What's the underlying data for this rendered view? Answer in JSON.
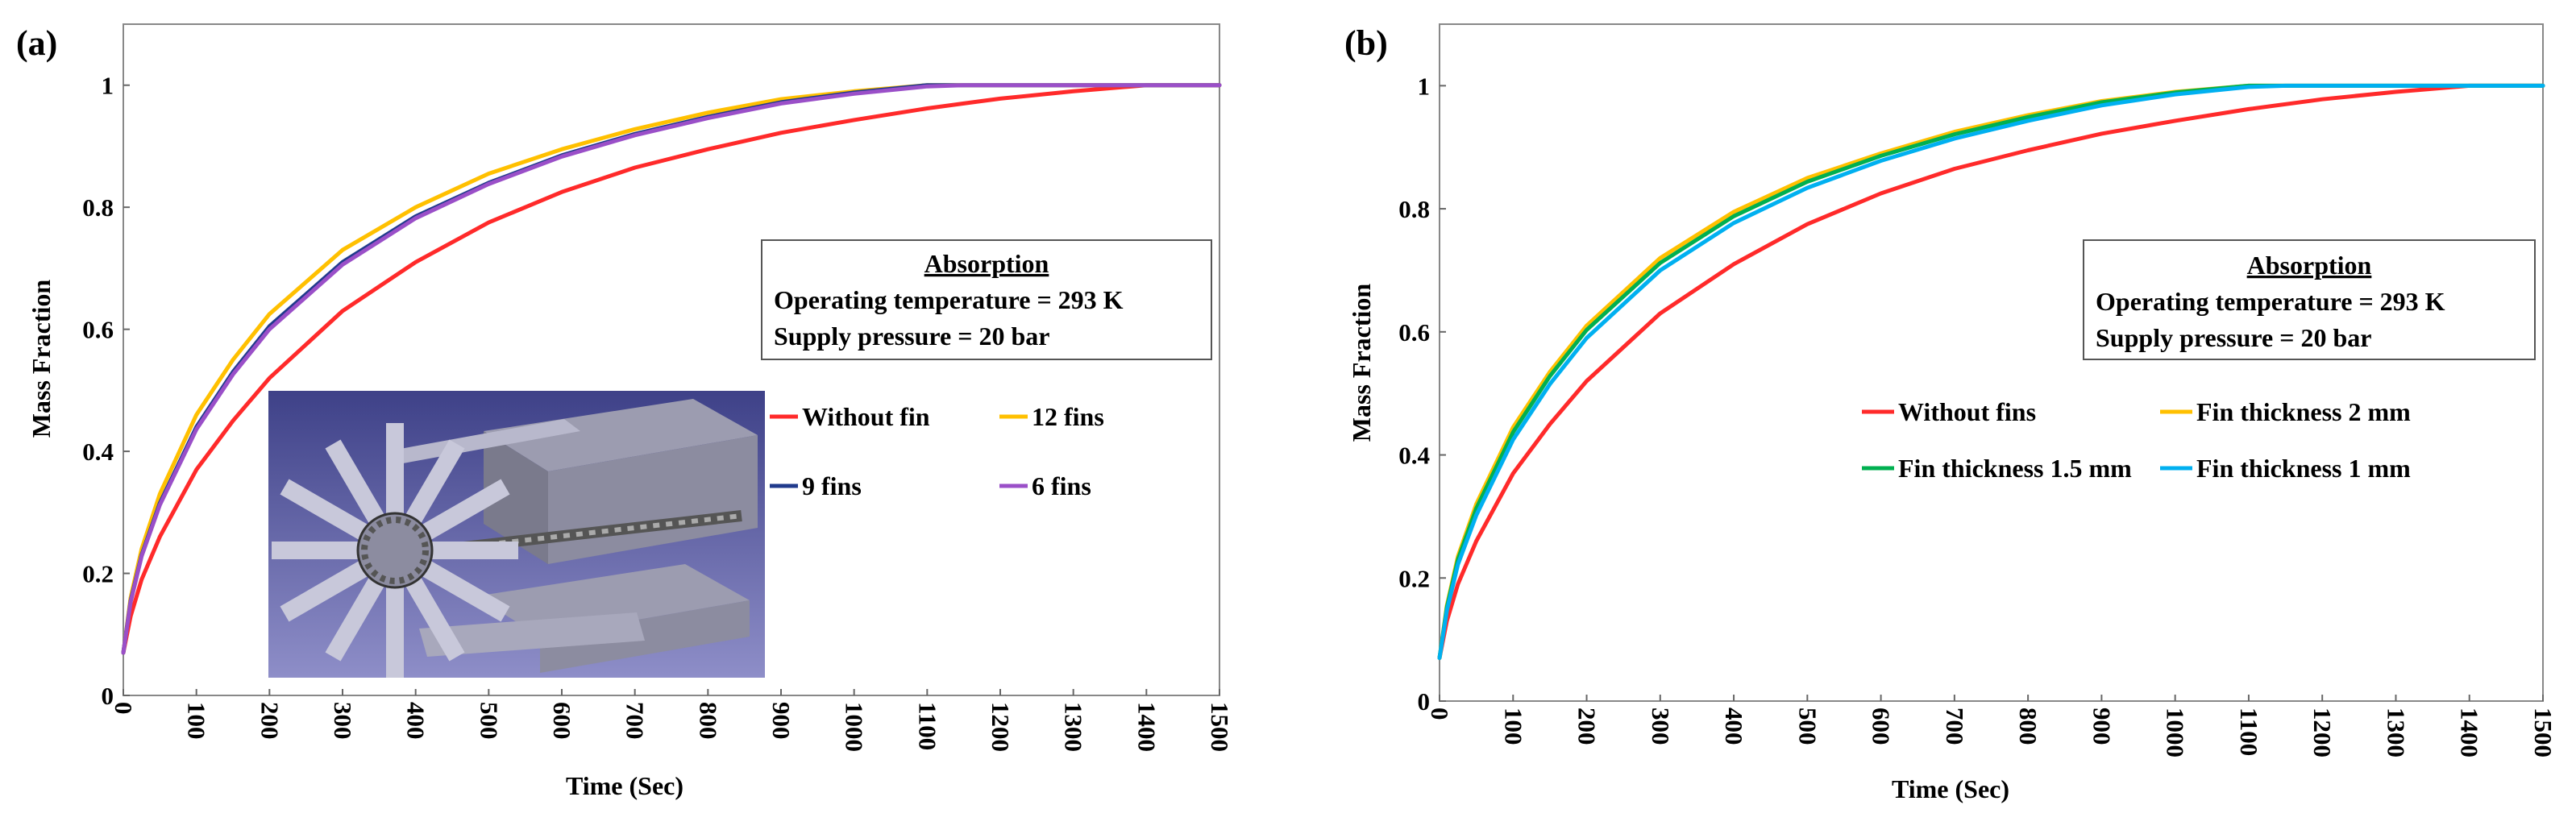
{
  "chart_data": [
    {
      "type": "line",
      "panel_label": "(a)",
      "xlabel": "Time (Sec)",
      "ylabel": "Mass Fraction",
      "xlim": [
        0,
        1500
      ],
      "ylim": [
        0,
        1.1
      ],
      "xticks": [
        0,
        100,
        200,
        300,
        400,
        500,
        600,
        700,
        800,
        900,
        1000,
        1100,
        1200,
        1300,
        1400,
        1500
      ],
      "yticks": [
        0,
        0.2,
        0.4,
        0.6,
        0.8,
        1
      ],
      "grid": false,
      "info_box": {
        "title": "Absorption",
        "line1": "Operating temperature = 293 K",
        "line2": "Supply pressure = 20 bar"
      },
      "inset": "fin geometry rendering",
      "x": [
        0,
        10,
        25,
        50,
        100,
        150,
        200,
        300,
        400,
        500,
        600,
        700,
        800,
        900,
        1000,
        1100,
        1150,
        1200,
        1300,
        1400,
        1500
      ],
      "series": [
        {
          "name": "Without fin",
          "color": "#ff2a2a",
          "values": [
            0.07,
            0.13,
            0.19,
            0.26,
            0.37,
            0.45,
            0.52,
            0.63,
            0.71,
            0.775,
            0.825,
            0.865,
            0.895,
            0.922,
            0.943,
            0.962,
            0.97,
            0.978,
            0.99,
            1.0,
            1.0
          ]
        },
        {
          "name": "12 fins",
          "color": "#ffc000",
          "values": [
            0.07,
            0.16,
            0.24,
            0.33,
            0.46,
            0.55,
            0.625,
            0.73,
            0.8,
            0.855,
            0.895,
            0.928,
            0.955,
            0.977,
            0.99,
            1.0,
            1.0,
            1.0,
            1.0,
            1.0,
            1.0
          ]
        },
        {
          "name": "9 fins",
          "color": "#203a8c",
          "values": [
            0.07,
            0.155,
            0.23,
            0.315,
            0.44,
            0.53,
            0.605,
            0.71,
            0.785,
            0.84,
            0.885,
            0.92,
            0.948,
            0.972,
            0.988,
            1.0,
            1.0,
            1.0,
            1.0,
            1.0,
            1.0
          ]
        },
        {
          "name": "6 fins",
          "color": "#9a4fc8",
          "values": [
            0.07,
            0.153,
            0.228,
            0.312,
            0.436,
            0.526,
            0.6,
            0.706,
            0.782,
            0.838,
            0.883,
            0.918,
            0.946,
            0.97,
            0.986,
            0.998,
            1.0,
            1.0,
            1.0,
            1.0,
            1.0
          ]
        }
      ]
    },
    {
      "type": "line",
      "panel_label": "(b)",
      "xlabel": "Time (Sec)",
      "ylabel": "Mass Fraction",
      "xlim": [
        0,
        1500
      ],
      "ylim": [
        0,
        1.1
      ],
      "xticks": [
        0,
        100,
        200,
        300,
        400,
        500,
        600,
        700,
        800,
        900,
        1000,
        1100,
        1200,
        1300,
        1400,
        1500
      ],
      "yticks": [
        0,
        0.2,
        0.4,
        0.6,
        0.8,
        1
      ],
      "grid": false,
      "info_box": {
        "title": "Absorption",
        "line1": "Operating temperature = 293 K",
        "line2": "Supply pressure = 20 bar"
      },
      "x": [
        0,
        10,
        25,
        50,
        100,
        150,
        200,
        300,
        400,
        500,
        600,
        700,
        800,
        900,
        1000,
        1100,
        1150,
        1200,
        1300,
        1400,
        1500
      ],
      "series": [
        {
          "name": "Without fins",
          "color": "#ff2a2a",
          "values": [
            0.07,
            0.13,
            0.19,
            0.26,
            0.37,
            0.45,
            0.52,
            0.63,
            0.71,
            0.775,
            0.825,
            0.865,
            0.895,
            0.922,
            0.943,
            0.962,
            0.97,
            0.978,
            0.99,
            1.0,
            1.0
          ]
        },
        {
          "name": "Fin thickness 2 mm",
          "color": "#ffc000",
          "values": [
            0.07,
            0.155,
            0.235,
            0.32,
            0.445,
            0.535,
            0.61,
            0.72,
            0.795,
            0.85,
            0.89,
            0.925,
            0.952,
            0.975,
            0.99,
            1.0,
            1.0,
            1.0,
            1.0,
            1.0,
            1.0
          ]
        },
        {
          "name": "Fin thickness 1.5 mm",
          "color": "#00b050",
          "values": [
            0.07,
            0.152,
            0.23,
            0.313,
            0.437,
            0.528,
            0.603,
            0.712,
            0.788,
            0.844,
            0.886,
            0.921,
            0.949,
            0.973,
            0.989,
            1.0,
            1.0,
            1.0,
            1.0,
            1.0,
            1.0
          ]
        },
        {
          "name": "Fin thickness 1 mm",
          "color": "#00b0f0",
          "values": [
            0.07,
            0.147,
            0.222,
            0.302,
            0.425,
            0.515,
            0.59,
            0.7,
            0.777,
            0.834,
            0.878,
            0.914,
            0.943,
            0.968,
            0.986,
            0.998,
            1.0,
            1.0,
            1.0,
            1.0,
            1.0
          ]
        }
      ]
    }
  ]
}
